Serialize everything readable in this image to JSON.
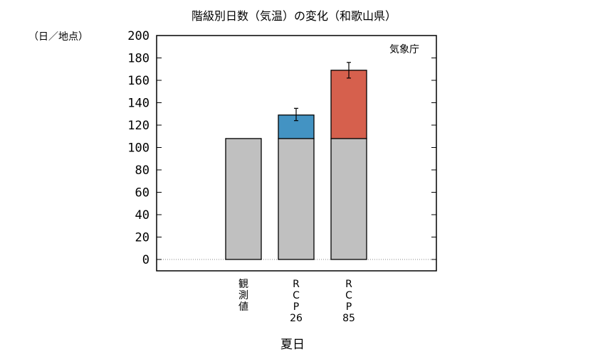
{
  "chart_data": {
    "type": "bar",
    "title": "階級別日数（気温）の変化（和歌山県）",
    "unit_label": "（日／地点）",
    "source_label": "気象庁",
    "xlabel": "夏日",
    "ylim": [
      0,
      200
    ],
    "yticks": [
      0,
      20,
      40,
      60,
      80,
      100,
      120,
      140,
      160,
      180,
      200
    ],
    "categories": [
      {
        "label_lines": [
          "観",
          "測",
          "値"
        ]
      },
      {
        "label_lines": [
          "R",
          "C",
          "P",
          "26"
        ]
      },
      {
        "label_lines": [
          "R",
          "C",
          "P",
          "85"
        ]
      }
    ],
    "bars": [
      {
        "base": 108,
        "increase": 0,
        "error": null
      },
      {
        "base": 108,
        "increase": 21,
        "error": [
          124,
          135
        ]
      },
      {
        "base": 108,
        "increase": 61,
        "error": [
          162,
          176
        ]
      }
    ],
    "colors": {
      "base": "#c0c0c0",
      "increase": [
        "#c0c0c0",
        "#4393c3",
        "#d6604d"
      ],
      "outline": "#000000"
    },
    "grid": false
  }
}
